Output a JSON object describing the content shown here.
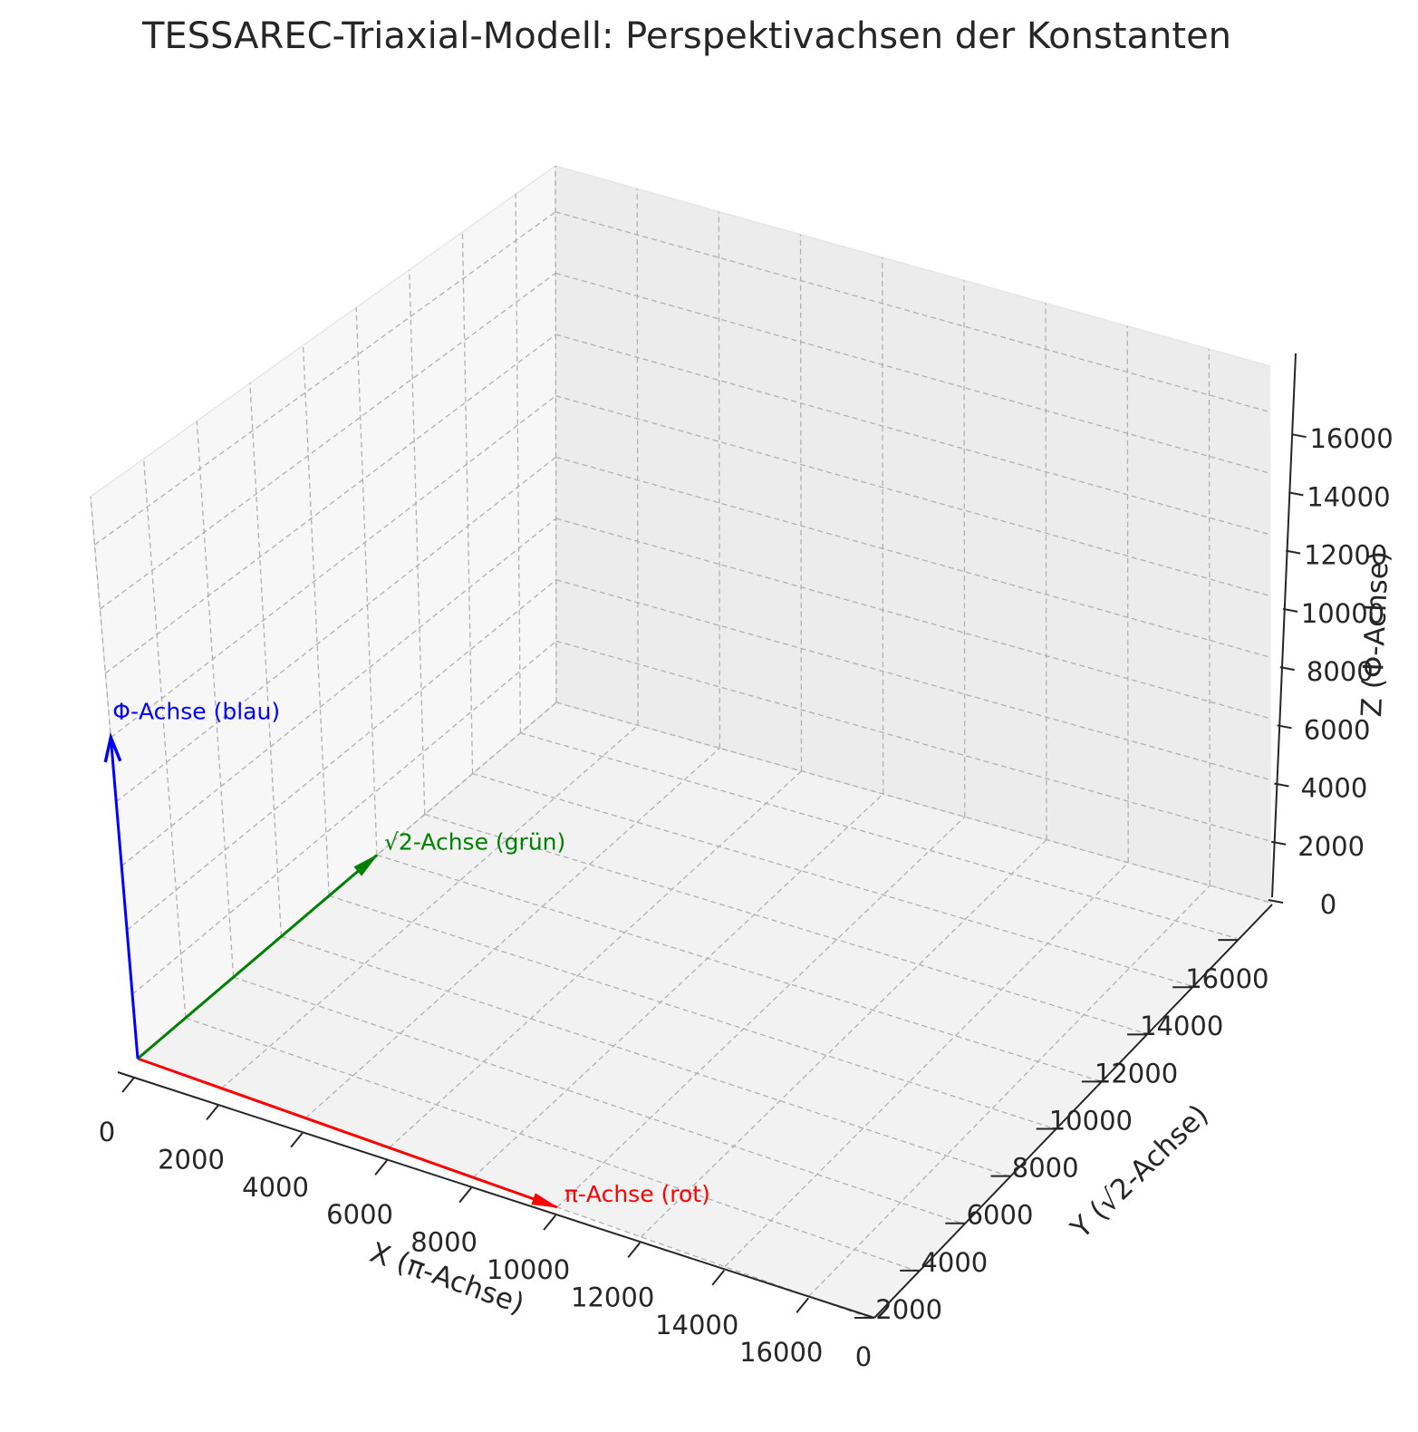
{
  "chart_data": {
    "type": "3d-quiver",
    "title": "TESSAREC-Triaxial-Modell: Perspektivachsen der Konstanten",
    "xlabel": "X (π-Achse)",
    "ylabel": "Y (√2-Achse)",
    "zlabel": "Z (Φ-Achse)",
    "xlim": [
      0,
      17500
    ],
    "ylim": [
      0,
      17500
    ],
    "zlim": [
      0,
      17500
    ],
    "x_ticks": [
      "0",
      "2000",
      "4000",
      "6000",
      "8000",
      "10000",
      "12000",
      "14000",
      "16000"
    ],
    "y_ticks": [
      "0",
      "2000",
      "4000",
      "6000",
      "8000",
      "10000",
      "12000",
      "14000",
      "16000"
    ],
    "z_ticks": [
      "0",
      "2000",
      "4000",
      "6000",
      "8000",
      "10000",
      "12000",
      "14000",
      "16000"
    ],
    "grid": true,
    "vectors": [
      {
        "label": "π-Achse (rot)",
        "color": "#ff0000",
        "origin": [
          0,
          0,
          0
        ],
        "end": [
          10000,
          0,
          0
        ]
      },
      {
        "label": "√2-Achse (grün)",
        "color": "#008000",
        "origin": [
          0,
          0,
          0
        ],
        "end": [
          0,
          10000,
          0
        ]
      },
      {
        "label": "Φ-Achse (blau)",
        "color": "#0000ff",
        "origin": [
          0,
          0,
          0
        ],
        "end": [
          0,
          0,
          10000
        ]
      }
    ]
  }
}
